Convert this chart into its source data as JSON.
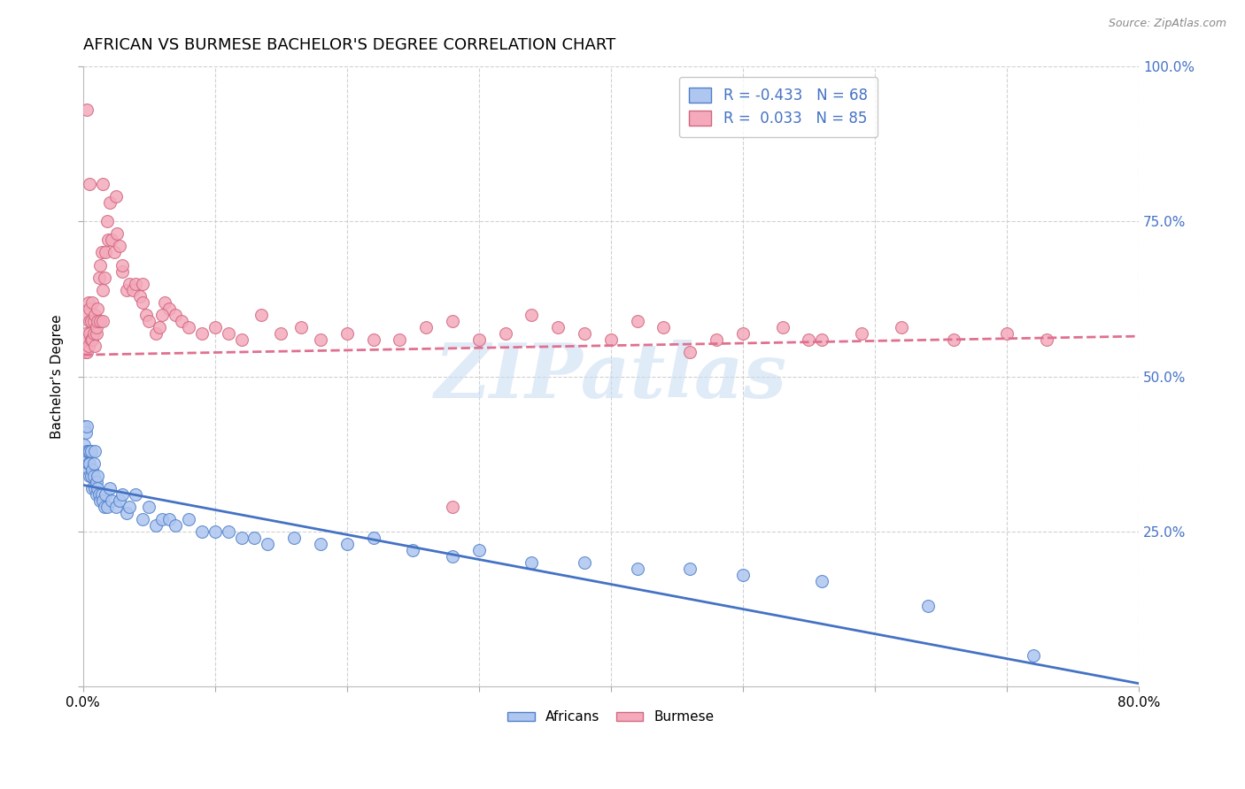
{
  "title": "AFRICAN VS BURMESE BACHELOR'S DEGREE CORRELATION CHART",
  "source": "Source: ZipAtlas.com",
  "ylabel": "Bachelor's Degree",
  "xlim": [
    0.0,
    0.8
  ],
  "ylim": [
    0.0,
    1.0
  ],
  "xticks": [
    0.0,
    0.1,
    0.2,
    0.3,
    0.4,
    0.5,
    0.6,
    0.7,
    0.8
  ],
  "yticks": [
    0.0,
    0.25,
    0.5,
    0.75,
    1.0
  ],
  "africans_color": "#aec6f0",
  "burmese_color": "#f4aabb",
  "africans_edge_color": "#5080c8",
  "burmese_edge_color": "#d06880",
  "africans_line_color": "#4472c4",
  "burmese_line_color": "#e07090",
  "right_tick_color": "#4472c4",
  "legend_text_color": "#4472c4",
  "grid_color": "#cccccc",
  "watermark_color": "#c8dcf4",
  "africans_R": -0.433,
  "africans_N": 68,
  "burmese_R": 0.033,
  "burmese_N": 85,
  "africans_x": [
    0.001,
    0.001,
    0.002,
    0.002,
    0.003,
    0.003,
    0.003,
    0.004,
    0.004,
    0.004,
    0.005,
    0.005,
    0.005,
    0.006,
    0.006,
    0.007,
    0.007,
    0.008,
    0.008,
    0.009,
    0.009,
    0.01,
    0.01,
    0.011,
    0.011,
    0.012,
    0.013,
    0.014,
    0.015,
    0.016,
    0.017,
    0.018,
    0.02,
    0.022,
    0.025,
    0.028,
    0.03,
    0.033,
    0.035,
    0.04,
    0.045,
    0.05,
    0.055,
    0.06,
    0.065,
    0.07,
    0.08,
    0.09,
    0.1,
    0.11,
    0.12,
    0.13,
    0.14,
    0.16,
    0.18,
    0.2,
    0.22,
    0.25,
    0.28,
    0.3,
    0.34,
    0.38,
    0.42,
    0.46,
    0.5,
    0.56,
    0.64,
    0.72
  ],
  "africans_y": [
    0.39,
    0.42,
    0.37,
    0.41,
    0.37,
    0.38,
    0.42,
    0.35,
    0.38,
    0.36,
    0.34,
    0.36,
    0.38,
    0.34,
    0.38,
    0.35,
    0.32,
    0.34,
    0.36,
    0.32,
    0.38,
    0.31,
    0.33,
    0.32,
    0.34,
    0.31,
    0.3,
    0.31,
    0.3,
    0.29,
    0.31,
    0.29,
    0.32,
    0.3,
    0.29,
    0.3,
    0.31,
    0.28,
    0.29,
    0.31,
    0.27,
    0.29,
    0.26,
    0.27,
    0.27,
    0.26,
    0.27,
    0.25,
    0.25,
    0.25,
    0.24,
    0.24,
    0.23,
    0.24,
    0.23,
    0.23,
    0.24,
    0.22,
    0.21,
    0.22,
    0.2,
    0.2,
    0.19,
    0.19,
    0.18,
    0.17,
    0.13,
    0.05
  ],
  "burmese_x": [
    0.001,
    0.002,
    0.002,
    0.003,
    0.003,
    0.003,
    0.004,
    0.004,
    0.005,
    0.005,
    0.005,
    0.006,
    0.006,
    0.007,
    0.007,
    0.008,
    0.008,
    0.009,
    0.009,
    0.01,
    0.01,
    0.011,
    0.011,
    0.012,
    0.013,
    0.013,
    0.014,
    0.015,
    0.015,
    0.016,
    0.017,
    0.018,
    0.019,
    0.02,
    0.022,
    0.024,
    0.026,
    0.028,
    0.03,
    0.033,
    0.035,
    0.038,
    0.04,
    0.043,
    0.045,
    0.048,
    0.05,
    0.055,
    0.058,
    0.062,
    0.065,
    0.07,
    0.075,
    0.08,
    0.09,
    0.1,
    0.11,
    0.12,
    0.135,
    0.15,
    0.165,
    0.18,
    0.2,
    0.22,
    0.24,
    0.26,
    0.28,
    0.3,
    0.32,
    0.34,
    0.36,
    0.38,
    0.4,
    0.42,
    0.44,
    0.46,
    0.48,
    0.5,
    0.53,
    0.56,
    0.59,
    0.62,
    0.66,
    0.7,
    0.73
  ],
  "burmese_y": [
    0.56,
    0.54,
    0.57,
    0.6,
    0.56,
    0.54,
    0.62,
    0.55,
    0.61,
    0.57,
    0.59,
    0.59,
    0.56,
    0.62,
    0.56,
    0.57,
    0.59,
    0.6,
    0.55,
    0.57,
    0.58,
    0.61,
    0.59,
    0.66,
    0.68,
    0.59,
    0.7,
    0.59,
    0.64,
    0.66,
    0.7,
    0.75,
    0.72,
    0.78,
    0.72,
    0.7,
    0.73,
    0.71,
    0.67,
    0.64,
    0.65,
    0.64,
    0.65,
    0.63,
    0.62,
    0.6,
    0.59,
    0.57,
    0.58,
    0.62,
    0.61,
    0.6,
    0.59,
    0.58,
    0.57,
    0.58,
    0.57,
    0.56,
    0.6,
    0.57,
    0.58,
    0.56,
    0.57,
    0.56,
    0.56,
    0.58,
    0.59,
    0.56,
    0.57,
    0.6,
    0.58,
    0.57,
    0.56,
    0.59,
    0.58,
    0.54,
    0.56,
    0.57,
    0.58,
    0.56,
    0.57,
    0.58,
    0.56,
    0.57,
    0.56
  ],
  "burmese_extra_x": [
    0.003,
    0.005,
    0.015,
    0.025,
    0.03,
    0.045,
    0.06,
    0.28,
    0.55
  ],
  "burmese_extra_y": [
    0.93,
    0.81,
    0.81,
    0.79,
    0.68,
    0.65,
    0.6,
    0.29,
    0.56
  ],
  "title_fontsize": 13,
  "tick_fontsize": 11
}
